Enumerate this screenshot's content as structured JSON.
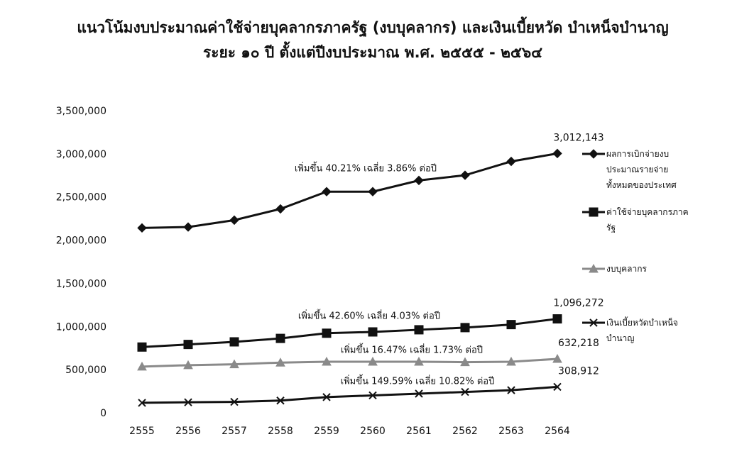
{
  "chart_data": {
    "type": "line",
    "title": "แนวโน้มงบประมาณค่าใช้จ่ายบุคลากรภาครัฐ (งบบุคลากร) และเงินเบี้ยหวัด บำเหน็จบำนาญ",
    "subtitle": "ระยะ ๑๐ ปี ตั้งแต่ปีงบประมาณ พ.ศ. ๒๕๕๕ - ๒๕๖๔",
    "categories": [
      "2555",
      "2556",
      "2557",
      "2558",
      "2559",
      "2560",
      "2561",
      "2562",
      "2563",
      "2564"
    ],
    "series": [
      {
        "name": "ผลการเบิกจ่ายงบประมาณรายจ่ายทั้งหมดของประเทศ",
        "color": "#111111",
        "marker": "diamond",
        "values": [
          2150000,
          2160000,
          2240000,
          2370000,
          2570000,
          2570000,
          2700000,
          2760000,
          2920000,
          3012143
        ],
        "value_labels": [
          null,
          null,
          null,
          null,
          null,
          null,
          null,
          null,
          null,
          "3,012,143"
        ]
      },
      {
        "name": "ค่าใช้จ่ายบุคลากรภาครัฐ",
        "color": "#111111",
        "marker": "square",
        "values": [
          770000,
          800000,
          830000,
          870000,
          930000,
          945000,
          970000,
          995000,
          1030000,
          1096272
        ],
        "value_labels": [
          null,
          null,
          null,
          null,
          null,
          null,
          null,
          null,
          null,
          "1,096,272"
        ]
      },
      {
        "name": "งบบุคลากร",
        "color": "#8a8a8a",
        "marker": "triangle",
        "values": [
          543000,
          560000,
          570000,
          590000,
          600000,
          600000,
          600000,
          595000,
          600000,
          632218
        ],
        "value_labels": [
          null,
          null,
          null,
          null,
          null,
          null,
          null,
          null,
          null,
          "632,218"
        ]
      },
      {
        "name": "เงินเบี้ยหวัดบำเหน็จ บำนาญ",
        "color": "#111111",
        "marker": "x",
        "values": [
          124000,
          130000,
          135000,
          150000,
          190000,
          210000,
          230000,
          250000,
          270000,
          308912
        ],
        "value_labels": [
          null,
          null,
          null,
          null,
          null,
          null,
          null,
          null,
          null,
          "308,912"
        ]
      }
    ],
    "annotations": [
      "เพิ่มขึ้น 40.21% เฉลี่ย 3.86% ต่อปี",
      "เพิ่มขึ้น 42.60% เฉลี่ย 4.03% ต่อปี",
      "เพิ่มขึ้น 16.47% เฉลี่ย 1.73% ต่อปี",
      "เพิ่มขึ้น 149.59% เฉลี่ย 10.82% ต่อปี"
    ],
    "ylim": [
      0,
      3500000
    ],
    "yticks": [
      0,
      {
        "value": 500000,
        "label": "500,000"
      },
      {
        "value": 1000000,
        "label": "1,000,000"
      },
      {
        "value": 1500000,
        "label": "1,500,000"
      },
      {
        "value": 2000000,
        "label": "2,000,000"
      },
      {
        "value": 2500000,
        "label": "2,500,000"
      },
      {
        "value": 3000000,
        "label": "3,000,000"
      },
      {
        "value": 3500000,
        "label": "3,500,000"
      }
    ],
    "grid": false
  }
}
